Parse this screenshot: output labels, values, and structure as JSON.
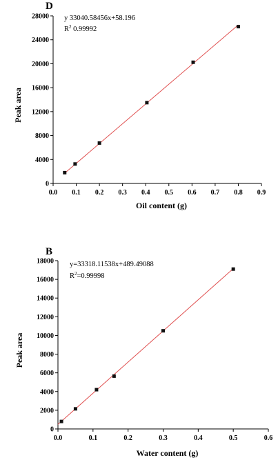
{
  "chart_data": [
    {
      "type": "scatter",
      "panel_label": "D",
      "equation": "y  33040.58456x+58.196",
      "r2_prefix": "R",
      "r2_exp": "2",
      "r2_value": " 0.99992",
      "xlabel": "Oil content (g)",
      "ylabel": "Peak area",
      "xlim": [
        0.0,
        0.9
      ],
      "ylim": [
        0,
        28000
      ],
      "xticks": [
        {
          "value": 0.0,
          "label": "0.0"
        },
        {
          "value": 0.1,
          "label": "0.1"
        },
        {
          "value": 0.2,
          "label": "0.2"
        },
        {
          "value": 0.3,
          "label": "0.3"
        },
        {
          "value": 0.4,
          "label": "0.4"
        },
        {
          "value": 0.5,
          "label": "0.5"
        },
        {
          "value": 0.6,
          "label": "0.6"
        },
        {
          "value": 0.7,
          "label": "0.7"
        },
        {
          "value": 0.8,
          "label": "0.8"
        },
        {
          "value": 0.9,
          "label": "0.9"
        }
      ],
      "yticks": [
        {
          "value": 0,
          "label": "0"
        },
        {
          "value": 4000,
          "label": "4000"
        },
        {
          "value": 8000,
          "label": "8000"
        },
        {
          "value": 12000,
          "label": "12000"
        },
        {
          "value": 16000,
          "label": "16000"
        },
        {
          "value": 20000,
          "label": "20000"
        },
        {
          "value": 24000,
          "label": "24000"
        },
        {
          "value": 28000,
          "label": "28000"
        }
      ],
      "points": [
        {
          "x": 0.05,
          "y": 1800
        },
        {
          "x": 0.095,
          "y": 3250
        },
        {
          "x": 0.2,
          "y": 6750
        },
        {
          "x": 0.405,
          "y": 13500
        },
        {
          "x": 0.605,
          "y": 20250
        },
        {
          "x": 0.8,
          "y": 26200
        }
      ],
      "fit": {
        "slope": 33040.58456,
        "intercept": 58.196,
        "x_start": 0.05,
        "x_end": 0.8
      },
      "fit_color": "#e05050",
      "marker_color": "#111111",
      "grid": false
    },
    {
      "type": "scatter",
      "panel_label": "B",
      "equation": "y=33318.11538x+489.49088",
      "r2_prefix": "R",
      "r2_exp": "2",
      "r2_value": "=0.99998",
      "xlabel": "Water content (g)",
      "ylabel": "Peak area",
      "xlim": [
        0.0,
        0.6
      ],
      "ylim": [
        0,
        18000
      ],
      "xticks": [
        {
          "value": 0.0,
          "label": "0.0"
        },
        {
          "value": 0.1,
          "label": "0.1"
        },
        {
          "value": 0.2,
          "label": "0.2"
        },
        {
          "value": 0.3,
          "label": "0.3"
        },
        {
          "value": 0.4,
          "label": "0.4"
        },
        {
          "value": 0.5,
          "label": "0.5"
        },
        {
          "value": 0.6,
          "label": "0.6"
        }
      ],
      "yticks": [
        {
          "value": 0,
          "label": "0"
        },
        {
          "value": 2000,
          "label": "2000"
        },
        {
          "value": 4000,
          "label": "4000"
        },
        {
          "value": 6000,
          "label": "6000"
        },
        {
          "value": 8000,
          "label": "8000"
        },
        {
          "value": 10000,
          "label": "10000"
        },
        {
          "value": 12000,
          "label": "12000"
        },
        {
          "value": 14000,
          "label": "14000"
        },
        {
          "value": 16000,
          "label": "16000"
        },
        {
          "value": 18000,
          "label": "18000"
        }
      ],
      "points": [
        {
          "x": 0.01,
          "y": 800
        },
        {
          "x": 0.05,
          "y": 2150
        },
        {
          "x": 0.11,
          "y": 4200
        },
        {
          "x": 0.16,
          "y": 5650
        },
        {
          "x": 0.3,
          "y": 10500
        },
        {
          "x": 0.5,
          "y": 17100
        }
      ],
      "fit": {
        "slope": 33318.11538,
        "intercept": 489.49088,
        "x_start": 0.0,
        "x_end": 0.5
      },
      "fit_color": "#e05050",
      "marker_color": "#111111",
      "grid": false
    }
  ]
}
